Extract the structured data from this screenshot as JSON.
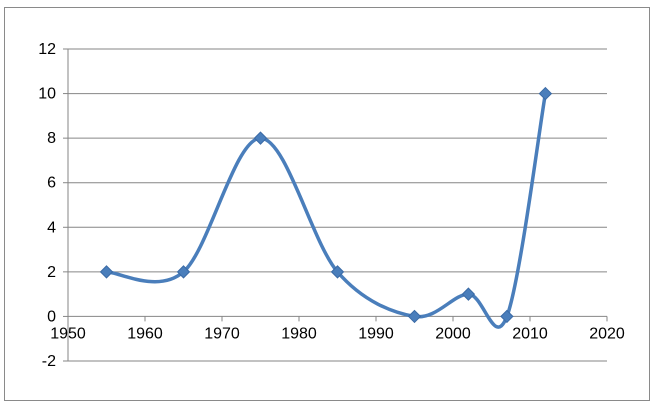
{
  "chart_data": {
    "type": "line",
    "smooth": true,
    "title": "",
    "xlabel": "",
    "ylabel": "",
    "xlim": [
      1950,
      2020
    ],
    "ylim": [
      -2,
      12
    ],
    "x_ticks": [
      1950,
      1960,
      1970,
      1980,
      1990,
      2000,
      2010,
      2020
    ],
    "y_ticks": [
      -2,
      0,
      2,
      4,
      6,
      8,
      10,
      12
    ],
    "grid": true,
    "legend": "none",
    "series": [
      {
        "color": "#4a7ebb",
        "marker": "diamond",
        "x": [
          1955,
          1965,
          1975,
          1985,
          1995,
          2002,
          2007,
          2012
        ],
        "y": [
          2,
          2,
          8,
          2,
          0,
          1,
          0,
          10
        ]
      }
    ]
  }
}
